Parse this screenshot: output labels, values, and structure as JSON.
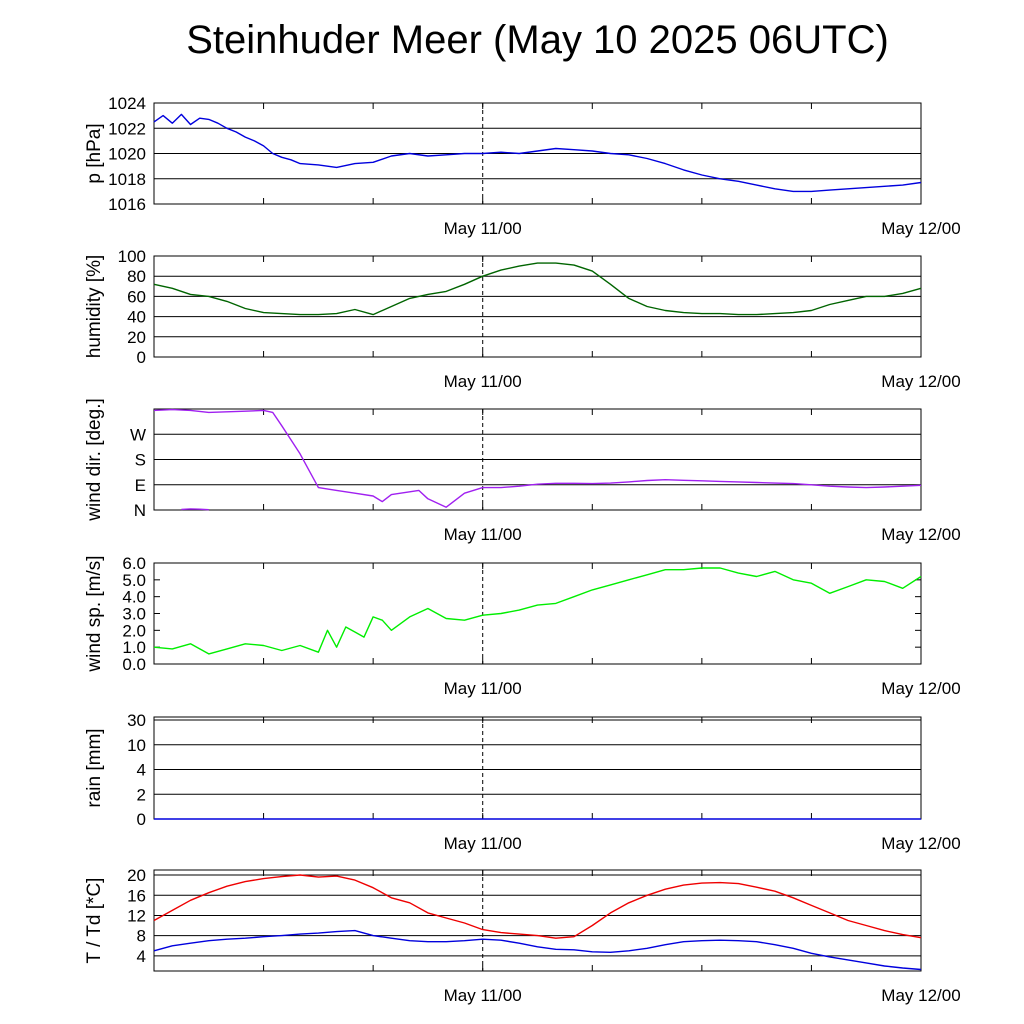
{
  "title": "Steinhuder Meer (May 10 2025 06UTC)",
  "x_tick_labels": [
    "May 11/00",
    "May 12/00"
  ],
  "colors": {
    "pressure": "#0000dd",
    "humidity": "#006400",
    "wind_dir": "#a020f0",
    "wind_speed": "#00ee00",
    "rain": "#0000dd",
    "temperature": "#ee0000",
    "dewpoint": "#0000dd",
    "grid": "#000000",
    "marker": "#000000"
  },
  "chart_data": [
    {
      "type": "line",
      "panel": "pressure",
      "ylabel": "p [hPa]",
      "ylim": [
        1016,
        1024
      ],
      "yticks": [
        1016,
        1018,
        1020,
        1022,
        1024
      ],
      "ytick_labels": [
        "1016",
        "1018",
        "1020",
        "1022",
        "1024"
      ],
      "grid": true,
      "xlim": [
        0,
        42
      ],
      "x_label_positions": [
        18,
        42
      ],
      "marker_line_x": 18,
      "series": [
        {
          "x": [
            0,
            0.5,
            1,
            1.5,
            2,
            2.5,
            3,
            3.5,
            4,
            4.5,
            5,
            5.5,
            6,
            6.5,
            7,
            7.5,
            8,
            9,
            10,
            11,
            12,
            13,
            14,
            15,
            16,
            17,
            18,
            19,
            20,
            21,
            22,
            23,
            24,
            25,
            26,
            27,
            28,
            29,
            30,
            31,
            32,
            33,
            34,
            35,
            36,
            37,
            38,
            39,
            40,
            41,
            42
          ],
          "y": [
            1022.5,
            1023.0,
            1022.4,
            1023.1,
            1022.3,
            1022.8,
            1022.7,
            1022.4,
            1022.0,
            1021.7,
            1021.3,
            1021.0,
            1020.6,
            1020.0,
            1019.7,
            1019.5,
            1019.2,
            1019.1,
            1018.9,
            1019.2,
            1019.3,
            1019.8,
            1020.0,
            1019.8,
            1019.9,
            1020.0,
            1020.0,
            1020.1,
            1020.0,
            1020.2,
            1020.4,
            1020.3,
            1020.2,
            1020.0,
            1019.9,
            1019.6,
            1019.2,
            1018.7,
            1018.3,
            1018.0,
            1017.8,
            1017.5,
            1017.2,
            1017.0,
            1017.0,
            1017.1,
            1017.2,
            1017.3,
            1017.4,
            1017.5,
            1017.7
          ]
        }
      ]
    },
    {
      "type": "line",
      "panel": "humidity",
      "ylabel": "humidity [%]",
      "ylim": [
        0,
        100
      ],
      "yticks": [
        0,
        20,
        40,
        60,
        80,
        100
      ],
      "ytick_labels": [
        "0",
        "20",
        "40",
        "60",
        "80",
        "100"
      ],
      "grid": true,
      "xlim": [
        0,
        42
      ],
      "x_label_positions": [
        18,
        42
      ],
      "marker_line_x": 18,
      "series": [
        {
          "x": [
            0,
            1,
            2,
            3,
            4,
            5,
            6,
            7,
            8,
            9,
            10,
            11,
            12,
            13,
            14,
            15,
            16,
            17,
            18,
            19,
            20,
            21,
            22,
            23,
            24,
            25,
            26,
            27,
            28,
            29,
            30,
            31,
            32,
            33,
            34,
            35,
            36,
            37,
            38,
            39,
            40,
            41,
            42
          ],
          "y": [
            72,
            68,
            62,
            60,
            55,
            48,
            44,
            43,
            42,
            42,
            43,
            47,
            42,
            50,
            58,
            62,
            65,
            72,
            80,
            86,
            90,
            93,
            93,
            91,
            85,
            72,
            58,
            50,
            46,
            44,
            43,
            43,
            42,
            42,
            43,
            44,
            46,
            52,
            56,
            60,
            60,
            63,
            68
          ]
        }
      ]
    },
    {
      "type": "line",
      "panel": "wind_direction",
      "ylabel": "wind dir. [deg.]",
      "ylim": [
        0,
        360
      ],
      "yticks": [
        0,
        90,
        180,
        270
      ],
      "ytick_labels": [
        "N",
        "E",
        "S",
        "W"
      ],
      "grid": true,
      "xlim": [
        0,
        42
      ],
      "x_label_positions": [
        18,
        42
      ],
      "marker_line_x": 18,
      "series": [
        {
          "x": [
            0,
            1,
            2,
            3,
            4,
            5,
            6,
            6.5,
            7,
            7.5,
            8,
            8.5,
            9,
            10,
            11,
            12,
            12.5,
            13,
            14,
            14.5,
            15,
            16,
            17,
            18,
            19,
            20,
            21,
            22,
            23,
            24,
            25,
            26,
            27,
            28,
            29,
            30,
            31,
            32,
            33,
            34,
            35,
            36,
            37,
            38,
            39,
            40,
            41,
            42
          ],
          "y": [
            355,
            358,
            355,
            348,
            350,
            352,
            355,
            348,
            300,
            250,
            200,
            140,
            80,
            70,
            60,
            50,
            30,
            55,
            65,
            70,
            40,
            10,
            60,
            80,
            80,
            85,
            92,
            95,
            95,
            94,
            96,
            100,
            105,
            108,
            106,
            104,
            102,
            100,
            98,
            96,
            94,
            90,
            85,
            82,
            80,
            82,
            85,
            88
          ]
        },
        {
          "x": [
            1.5,
            2,
            2.5,
            3
          ],
          "y": [
            2,
            4,
            3,
            1
          ]
        }
      ]
    },
    {
      "type": "line",
      "panel": "wind_speed",
      "ylabel": "wind sp. [m/s]",
      "ylim": [
        0,
        6
      ],
      "yticks": [
        0,
        1,
        2,
        3,
        4,
        5,
        6
      ],
      "ytick_labels": [
        "0.0",
        "1.0",
        "2.0",
        "3.0",
        "4.0",
        "5.0",
        "6.0"
      ],
      "grid": false,
      "xlim": [
        0,
        42
      ],
      "x_label_positions": [
        18,
        42
      ],
      "marker_line_x": 18,
      "series": [
        {
          "x": [
            0,
            1,
            2,
            3,
            4,
            5,
            6,
            7,
            8,
            9,
            9.5,
            10,
            10.5,
            11,
            11.5,
            12,
            12.5,
            13,
            14,
            15,
            16,
            17,
            18,
            19,
            20,
            21,
            22,
            23,
            24,
            25,
            26,
            27,
            28,
            29,
            30,
            31,
            32,
            33,
            34,
            35,
            36,
            37,
            38,
            39,
            40,
            41,
            42
          ],
          "y": [
            1.0,
            0.9,
            1.2,
            0.6,
            0.9,
            1.2,
            1.1,
            0.8,
            1.1,
            0.7,
            2.0,
            1.0,
            2.2,
            1.9,
            1.6,
            2.8,
            2.6,
            2.0,
            2.8,
            3.3,
            2.7,
            2.6,
            2.9,
            3.0,
            3.2,
            3.5,
            3.6,
            4.0,
            4.4,
            4.7,
            5.0,
            5.3,
            5.6,
            5.6,
            5.7,
            5.7,
            5.4,
            5.2,
            5.5,
            5.0,
            4.8,
            4.2,
            4.6,
            5.0,
            4.9,
            4.5,
            5.2
          ]
        }
      ]
    },
    {
      "type": "line",
      "panel": "rain",
      "ylabel": "rain [mm]",
      "ylim": [
        0,
        30
      ],
      "yticks": [
        0,
        2,
        4,
        10,
        30
      ],
      "ytick_labels": [
        "0",
        "2",
        "4",
        "10",
        "30"
      ],
      "grid": true,
      "xlim": [
        0,
        42
      ],
      "x_label_positions": [
        18,
        42
      ],
      "marker_line_x": 18,
      "series": [
        {
          "x": [
            0,
            42
          ],
          "y": [
            0,
            0
          ]
        }
      ]
    },
    {
      "type": "line",
      "panel": "temperature",
      "ylabel": "T / Td [*C]",
      "ylim": [
        1,
        21
      ],
      "yticks": [
        4,
        8,
        12,
        16,
        20
      ],
      "ytick_labels": [
        "4",
        "8",
        "12",
        "16",
        "20"
      ],
      "grid": true,
      "xlim": [
        0,
        42
      ],
      "x_label_positions": [
        18,
        42
      ],
      "marker_line_x": 18,
      "series": [
        {
          "x": [
            0,
            1,
            2,
            3,
            4,
            5,
            6,
            7,
            8,
            9,
            10,
            11,
            12,
            13,
            14,
            15,
            16,
            17,
            18,
            19,
            20,
            21,
            22,
            23,
            24,
            25,
            26,
            27,
            28,
            29,
            30,
            31,
            32,
            33,
            34,
            35,
            36,
            37,
            38,
            39,
            40,
            41,
            42
          ],
          "y": [
            11,
            13,
            15,
            16.5,
            17.8,
            18.7,
            19.3,
            19.7,
            20.0,
            19.6,
            19.8,
            19.0,
            17.5,
            15.5,
            14.5,
            12.5,
            11.5,
            10.5,
            9.2,
            8.6,
            8.3,
            8.0,
            7.5,
            7.8,
            10,
            12.5,
            14.5,
            16,
            17.2,
            18,
            18.4,
            18.5,
            18.3,
            17.6,
            16.8,
            15.5,
            14,
            12.5,
            11,
            10,
            9,
            8.2,
            7.6
          ]
        },
        {
          "x": [
            0,
            1,
            2,
            3,
            4,
            5,
            6,
            7,
            8,
            9,
            10,
            11,
            12,
            13,
            14,
            15,
            16,
            17,
            18,
            19,
            20,
            21,
            22,
            23,
            24,
            25,
            26,
            27,
            28,
            29,
            30,
            31,
            32,
            33,
            34,
            35,
            36,
            37,
            38,
            39,
            40,
            41,
            42
          ],
          "y": [
            5.0,
            6.0,
            6.5,
            7.0,
            7.3,
            7.5,
            7.8,
            8.0,
            8.3,
            8.5,
            8.8,
            9.0,
            8.0,
            7.5,
            7.0,
            6.8,
            6.8,
            7.0,
            7.3,
            7.1,
            6.5,
            5.8,
            5.3,
            5.2,
            4.8,
            4.7,
            5.0,
            5.5,
            6.2,
            6.8,
            7.0,
            7.1,
            7.0,
            6.8,
            6.2,
            5.5,
            4.5,
            3.8,
            3.2,
            2.6,
            2.0,
            1.6,
            1.3
          ]
        }
      ]
    }
  ]
}
